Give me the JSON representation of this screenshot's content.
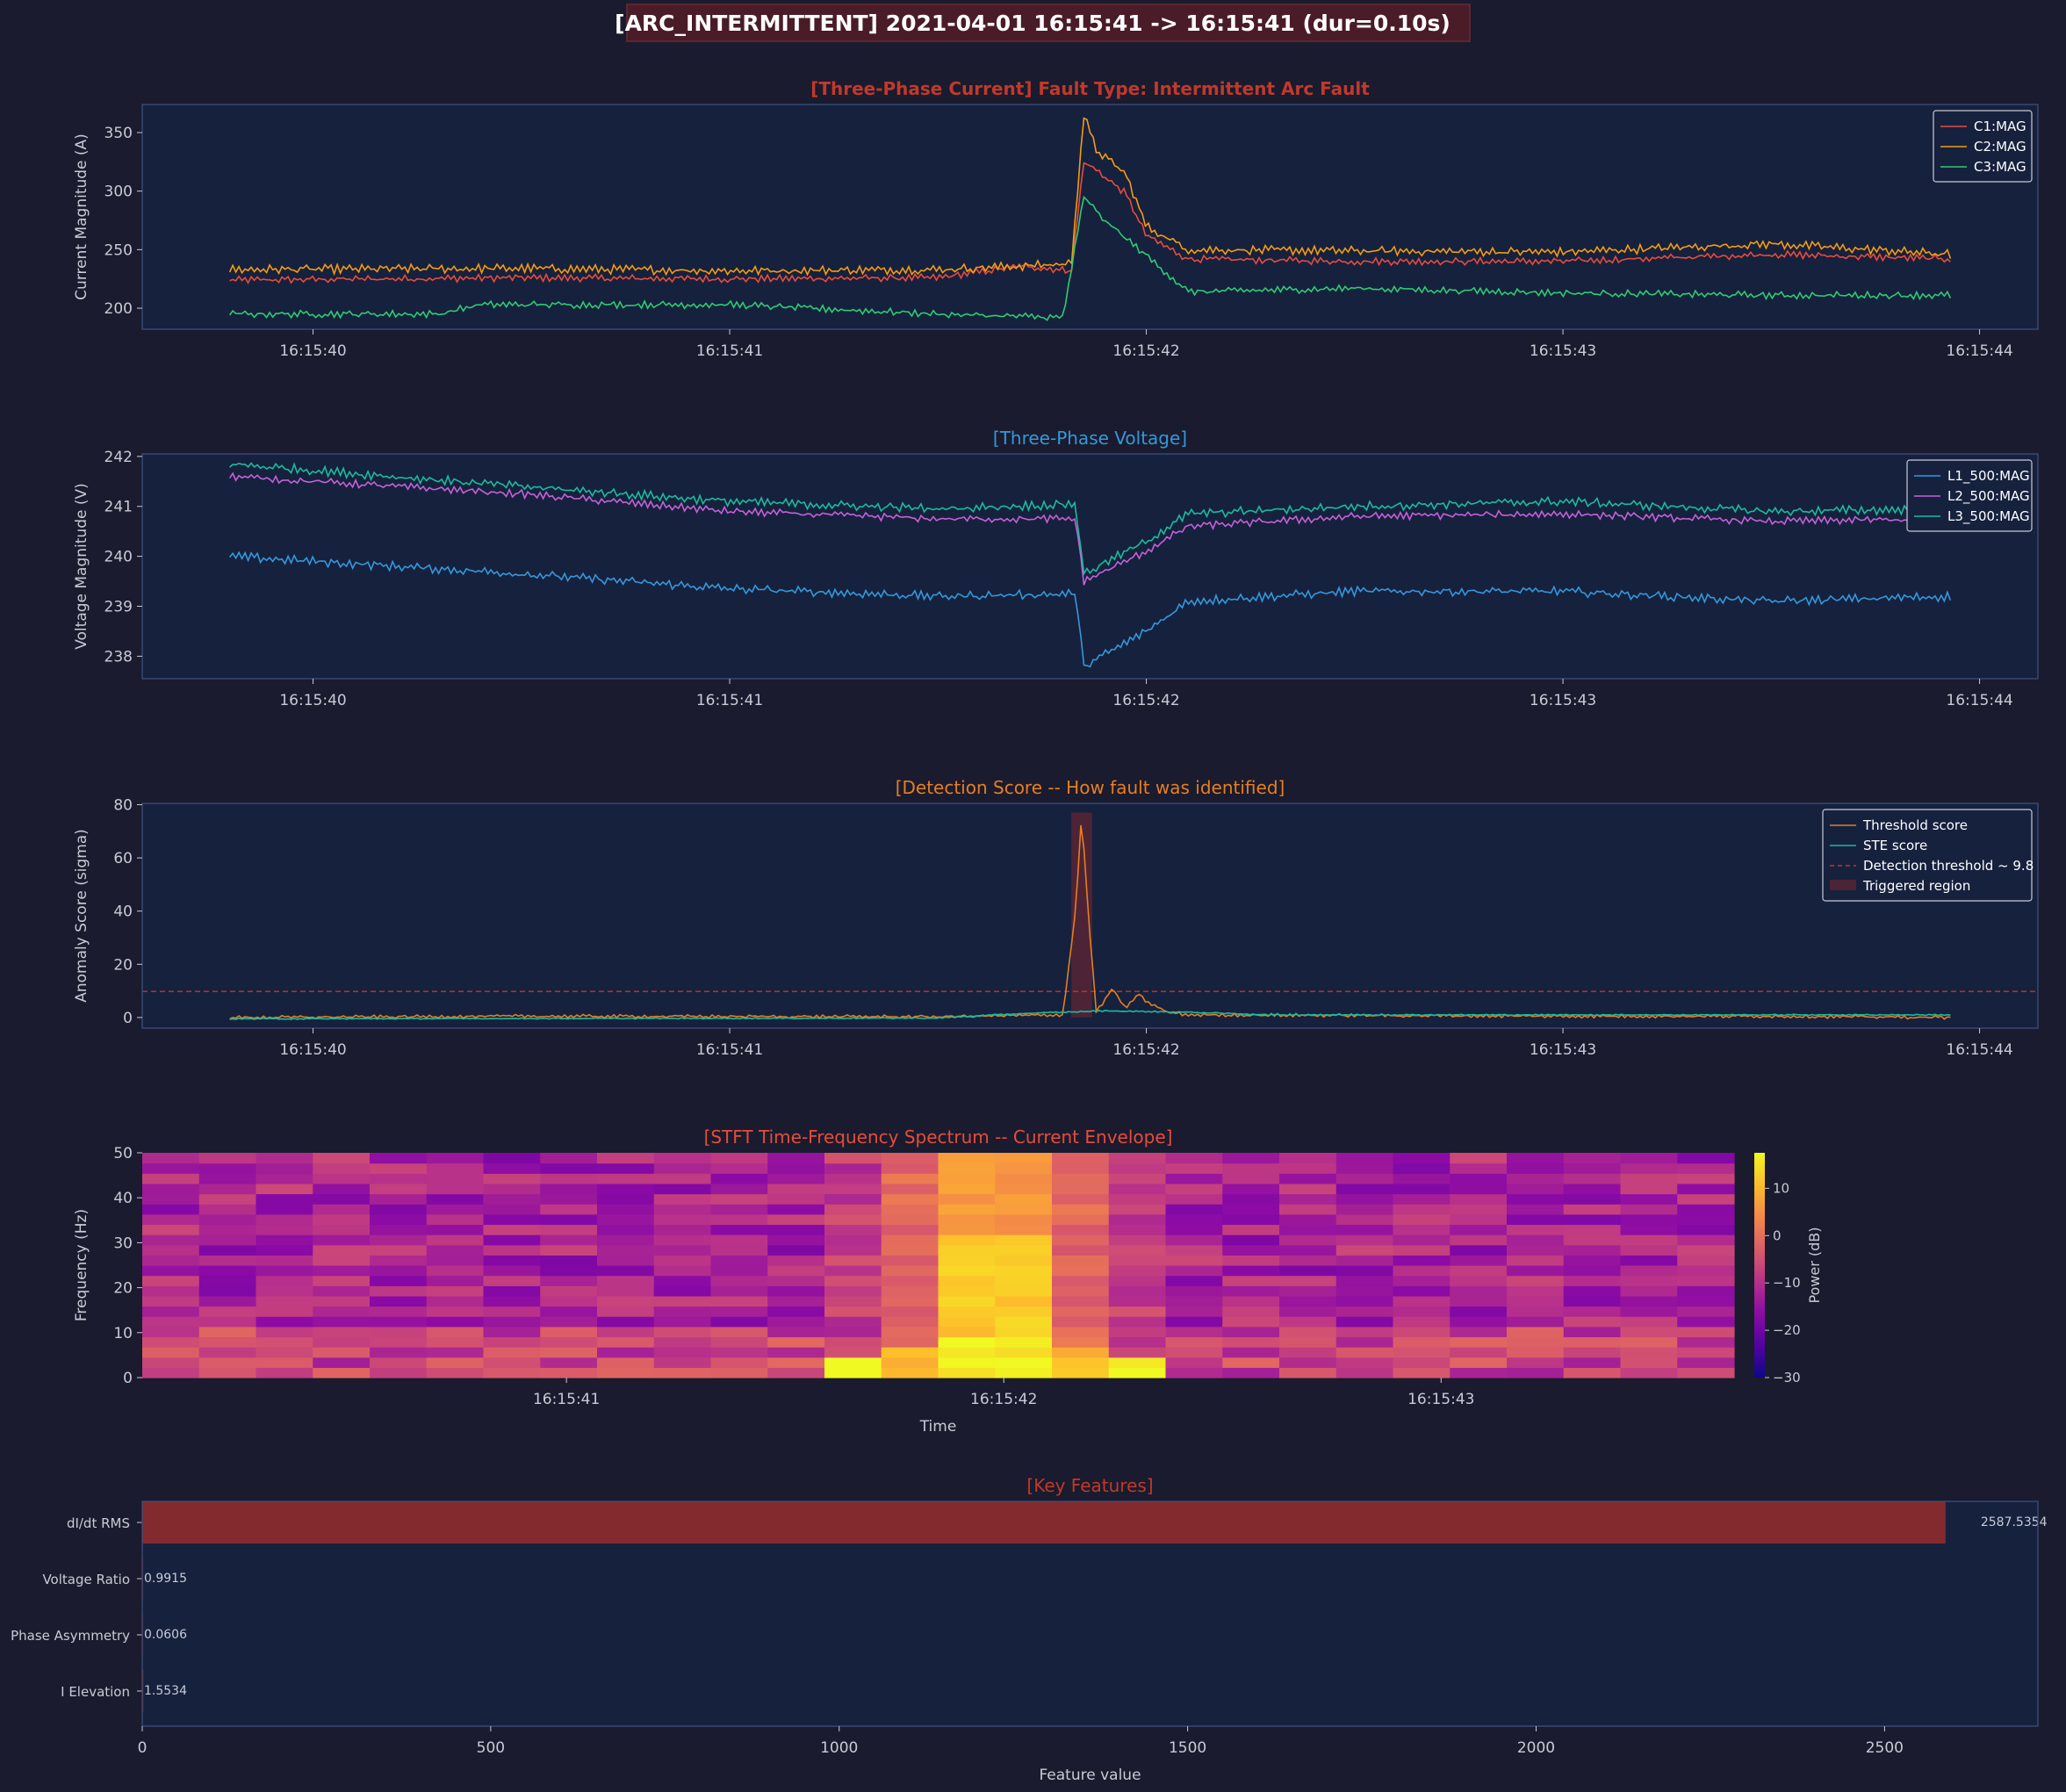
{
  "suptitle": "[ARC_INTERMITTENT]  2021-04-01 16:15:41 -> 16:15:41  (dur=0.10s)",
  "colors": {
    "figure_bg": "#1a1b2e",
    "axes_bg": "#16213e",
    "spine": "#3d4f7a",
    "tick_text": "#c8cbd6",
    "title_current": "#c0392b",
    "title_voltage": "#3498db",
    "title_score": "#e67e22",
    "title_stft": "#e74c3c",
    "title_features": "#c0392b",
    "suptitle_box": "#4a1c28",
    "feature_bar": "#822a2e"
  },
  "chart_data": [
    {
      "type": "line",
      "title": "[Three-Phase Current]  Fault Type: Intermittent Arc Fault",
      "ylabel": "Current Magnitude (A)",
      "xlabel": "",
      "x_range": [
        "16:15:39.80",
        "16:15:43.93"
      ],
      "xlim": [
        "16:15:39.59",
        "16:15:44.14"
      ],
      "ylim": [
        182,
        374
      ],
      "yticks": [
        200,
        250,
        300,
        350
      ],
      "xticks": [
        "16:15:40",
        "16:15:41",
        "16:15:42",
        "16:15:43",
        "16:15:44"
      ],
      "grid": false,
      "legend_position": "top-right",
      "series": [
        {
          "name": "C1:MAG",
          "color": "#e74c3c",
          "x": [
            "16:15:39.8",
            "16:15:40.5",
            "16:15:41.0",
            "16:15:41.5",
            "16:15:41.70",
            "16:15:41.82",
            "16:15:41.85",
            "16:15:41.88",
            "16:15:41.95",
            "16:15:42.0",
            "16:15:42.1",
            "16:15:42.5",
            "16:15:43.0",
            "16:15:43.5",
            "16:15:43.93"
          ],
          "values": [
            224,
            226,
            225,
            226,
            236,
            232,
            325,
            318,
            298,
            262,
            242,
            240,
            240,
            246,
            242
          ]
        },
        {
          "name": "C2:MAG",
          "color": "#f39c12",
          "x": [
            "16:15:39.8",
            "16:15:40.5",
            "16:15:41.0",
            "16:15:41.5",
            "16:15:41.70",
            "16:15:41.82",
            "16:15:41.85",
            "16:15:41.88",
            "16:15:41.95",
            "16:15:42.0",
            "16:15:42.1",
            "16:15:42.5",
            "16:15:43.0",
            "16:15:43.5",
            "16:15:43.93"
          ],
          "values": [
            233,
            234,
            232,
            233,
            236,
            238,
            365,
            335,
            315,
            270,
            250,
            249,
            248,
            255,
            246
          ]
        },
        {
          "name": "C3:MAG",
          "color": "#2ecc71",
          "x": [
            "16:15:39.8",
            "16:15:40.3",
            "16:15:40.4",
            "16:15:41.0",
            "16:15:41.5",
            "16:15:41.80",
            "16:15:41.85",
            "16:15:41.90",
            "16:15:42.0",
            "16:15:42.1",
            "16:15:42.5",
            "16:15:43.0",
            "16:15:43.5",
            "16:15:43.93"
          ],
          "values": [
            195,
            195,
            203,
            203,
            195,
            192,
            295,
            275,
            245,
            214,
            217,
            213,
            211,
            211
          ]
        }
      ]
    },
    {
      "type": "line",
      "title": "[Three-Phase Voltage]",
      "ylabel": "Voltage Magnitude (V)",
      "xlabel": "",
      "xlim": [
        "16:15:39.59",
        "16:15:44.14"
      ],
      "ylim": [
        237.55,
        242.05
      ],
      "yticks": [
        238,
        239,
        240,
        241,
        242
      ],
      "xticks": [
        "16:15:40",
        "16:15:41",
        "16:15:42",
        "16:15:43",
        "16:15:44"
      ],
      "grid": false,
      "legend_position": "top-right",
      "series": [
        {
          "name": "L1_500:MAG",
          "color": "#3498db",
          "x": [
            "16:15:39.8",
            "16:15:40.5",
            "16:15:41.0",
            "16:15:41.5",
            "16:15:41.83",
            "16:15:41.85",
            "16:15:42.0",
            "16:15:42.1",
            "16:15:42.5",
            "16:15:43.0",
            "16:15:43.5",
            "16:15:43.93"
          ],
          "values": [
            240.0,
            239.65,
            239.35,
            239.2,
            239.25,
            237.8,
            238.5,
            239.1,
            239.3,
            239.3,
            239.1,
            239.2
          ]
        },
        {
          "name": "L2_500:MAG",
          "color": "#c561d6",
          "x": [
            "16:15:39.8",
            "16:15:40.5",
            "16:15:41.0",
            "16:15:41.5",
            "16:15:41.83",
            "16:15:41.85",
            "16:15:42.0",
            "16:15:42.1",
            "16:15:42.5",
            "16:15:43.0",
            "16:15:43.5",
            "16:15:43.93"
          ],
          "values": [
            241.6,
            241.25,
            240.9,
            240.75,
            240.75,
            239.5,
            240.1,
            240.6,
            240.8,
            240.85,
            240.7,
            240.75
          ]
        },
        {
          "name": "L3_500:MAG",
          "color": "#1abc9c",
          "x": [
            "16:15:39.8",
            "16:15:40.5",
            "16:15:41.0",
            "16:15:41.5",
            "16:15:41.83",
            "16:15:41.85",
            "16:15:42.0",
            "16:15:42.1",
            "16:15:42.5",
            "16:15:43.0",
            "16:15:43.5",
            "16:15:43.93"
          ],
          "values": [
            241.85,
            241.4,
            241.1,
            240.95,
            241.05,
            239.65,
            240.3,
            240.85,
            241.0,
            241.1,
            240.9,
            240.95
          ]
        }
      ]
    },
    {
      "type": "line",
      "title": "[Detection Score -- How fault was identified]",
      "ylabel": "Anomaly Score (sigma)",
      "xlabel": "",
      "xlim": [
        "16:15:39.59",
        "16:15:44.14"
      ],
      "ylim": [
        -4,
        80.5
      ],
      "yticks": [
        0,
        20,
        40,
        60,
        80
      ],
      "xticks": [
        "16:15:40",
        "16:15:41",
        "16:15:42",
        "16:15:43",
        "16:15:44"
      ],
      "grid": false,
      "legend_position": "top-right",
      "threshold": {
        "name": "Detection threshold ~ 9.8",
        "value": 9.8,
        "color": "#c0392b"
      },
      "triggered_region": {
        "name": "Triggered region",
        "x": [
          "16:15:41.82",
          "16:15:41.87"
        ],
        "color": "#5a2533"
      },
      "series": [
        {
          "name": "Threshold score",
          "color": "#e67e22",
          "x": [
            "16:15:39.8",
            "16:15:40.5",
            "16:15:41.5",
            "16:15:41.80",
            "16:15:41.83",
            "16:15:41.845",
            "16:15:41.86",
            "16:15:41.88",
            "16:15:41.92",
            "16:15:41.95",
            "16:15:41.98",
            "16:15:42.0",
            "16:15:42.05",
            "16:15:42.1",
            "16:15:43.0",
            "16:15:43.5",
            "16:15:43.93"
          ],
          "values": [
            0,
            0.5,
            0.3,
            1,
            40,
            77,
            40,
            2,
            11,
            3,
            9,
            6,
            2,
            1,
            0.5,
            0.5,
            0
          ]
        },
        {
          "name": "STE score",
          "color": "#1abc9c",
          "x": [
            "16:15:39.8",
            "16:15:41.5",
            "16:15:41.7",
            "16:15:41.9",
            "16:15:42.1",
            "16:15:42.3",
            "16:15:43.93"
          ],
          "values": [
            -0.5,
            -0.2,
            1.5,
            2.5,
            2,
            1,
            1
          ]
        }
      ]
    },
    {
      "type": "heatmap",
      "title": "[STFT Time-Frequency Spectrum -- Current Envelope]",
      "ylabel": "Frequency (Hz)",
      "xlabel": "Time",
      "yticks": [
        0,
        10,
        20,
        30,
        40,
        50
      ],
      "ylim": [
        0,
        50
      ],
      "xticks": [
        "16:15:41",
        "16:15:42",
        "16:15:43"
      ],
      "xlim": [
        "16:15:40.03",
        "16:15:43.67"
      ],
      "cells_x": 28,
      "cells_y": 22,
      "colorbar": {
        "label": "Power (dB)",
        "min": -30,
        "max": 17.5,
        "ticks": [
          10,
          0,
          -10,
          -20,
          -30
        ],
        "colormap": "plasma"
      },
      "hot_columns": {
        "start": 12,
        "end": 17,
        "note": "fault burst at ~16:15:41.9"
      }
    },
    {
      "type": "bar",
      "orientation": "horizontal",
      "title": "[Key Features]",
      "xlabel": "Feature value",
      "ylabel": "",
      "xlim": [
        0,
        2720
      ],
      "xticks": [
        0,
        500,
        1000,
        1500,
        2000,
        2500
      ],
      "grid": false,
      "categories": [
        "dI/dt RMS",
        "Voltage Ratio",
        "Phase Asymmetry",
        "I Elevation"
      ],
      "values": [
        2587.5354,
        0.9915,
        0.0606,
        1.5534
      ],
      "value_labels": [
        "2587.5354",
        "0.9915",
        "0.0606",
        "1.5534"
      ]
    }
  ]
}
